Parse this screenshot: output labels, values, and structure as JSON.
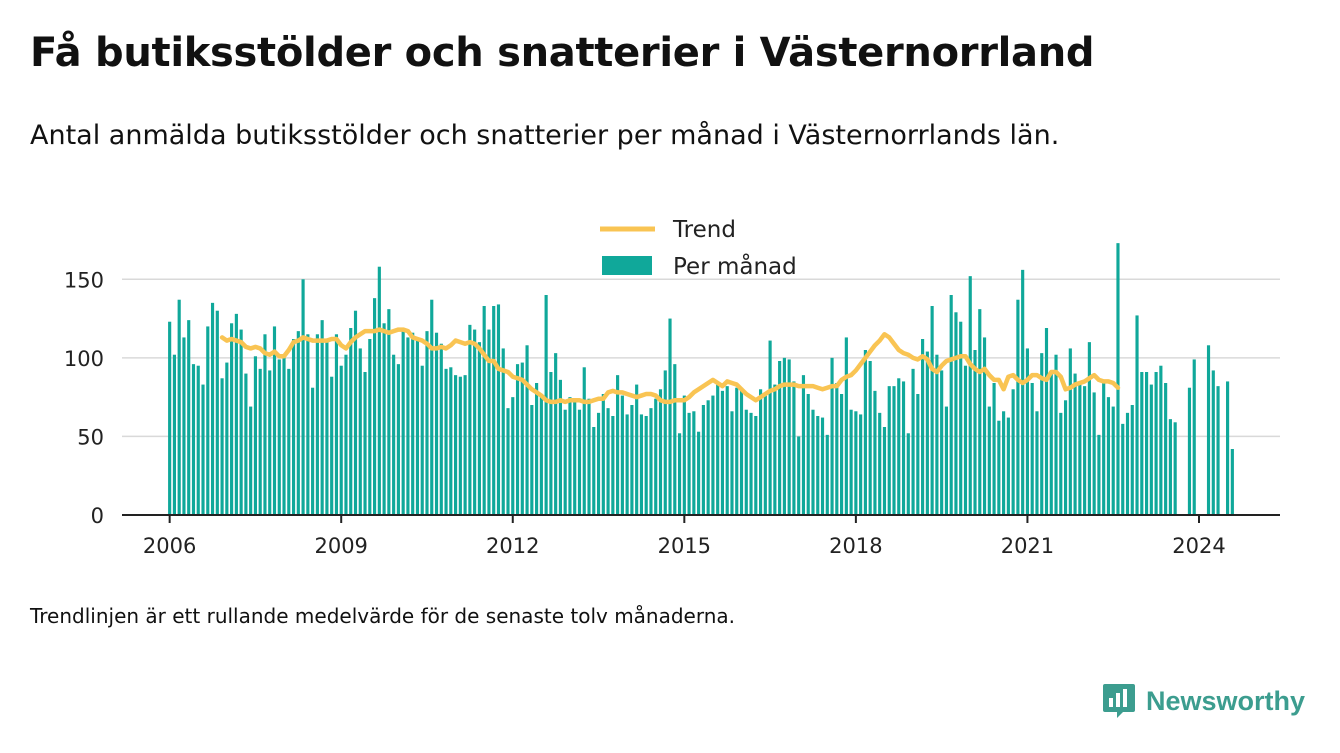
{
  "title": "Få butiksstölder och snatterier i Västernorrland",
  "subtitle": "Antal anmälda butiksstölder och snatterier per månad i Västernorrlands län.",
  "footnote": "Trendlinjen är ett rullande medelvärde för de senaste tolv månaderna.",
  "brand": {
    "name": "Newsworthy",
    "icon": "newsworthy-logo-icon",
    "color": "#3c9d8f"
  },
  "colors": {
    "bars": "#10a89a",
    "trend": "#f9c453",
    "grid": "#d9d9d9",
    "axis": "#222222"
  },
  "chart_data": {
    "type": "bar",
    "title": "",
    "xlabel": "",
    "ylabel": "",
    "ylim": [
      0,
      175
    ],
    "yticks": [
      0,
      50,
      100,
      150
    ],
    "x_start": "2006-01",
    "xlim": [
      "2005-03",
      "2025-06"
    ],
    "xticks": [
      "2006",
      "2009",
      "2012",
      "2015",
      "2018",
      "2021",
      "2024"
    ],
    "grid": true,
    "legend": {
      "position": "top-center",
      "entries": [
        "Trend",
        "Per månad"
      ]
    },
    "series": [
      {
        "name": "Per månad",
        "type": "bar",
        "values": [
          123,
          102,
          137,
          113,
          124,
          96,
          95,
          83,
          120,
          135,
          130,
          87,
          97,
          122,
          128,
          118,
          90,
          69,
          101,
          93,
          115,
          92,
          120,
          99,
          102,
          93,
          112,
          117,
          150,
          115,
          81,
          115,
          124,
          110,
          88,
          115,
          95,
          102,
          119,
          130,
          106,
          91,
          112,
          138,
          158,
          122,
          131,
          102,
          96,
          117,
          113,
          116,
          111,
          95,
          117,
          137,
          116,
          109,
          93,
          94,
          89,
          88,
          89,
          121,
          118,
          110,
          133,
          118,
          133,
          134,
          106,
          68,
          75,
          96,
          97,
          108,
          70,
          84,
          76,
          140,
          91,
          103,
          86,
          67,
          75,
          72,
          67,
          94,
          74,
          56,
          65,
          77,
          68,
          63,
          89,
          76,
          64,
          70,
          83,
          64,
          63,
          68,
          74,
          80,
          92,
          125,
          96,
          52,
          76,
          65,
          66,
          53,
          70,
          73,
          76,
          85,
          79,
          82,
          66,
          81,
          81,
          67,
          65,
          63,
          80,
          76,
          111,
          83,
          98,
          100,
          99,
          85,
          50,
          89,
          77,
          67,
          63,
          62,
          51,
          100,
          84,
          77,
          113,
          67,
          66,
          64,
          105,
          98,
          79,
          65,
          56,
          82,
          82,
          87,
          85,
          52,
          93,
          77,
          112,
          104,
          133,
          102,
          92,
          69,
          140,
          129,
          123,
          95,
          152,
          105,
          131,
          113,
          69,
          84,
          60,
          66,
          62,
          80,
          137,
          156,
          106,
          84,
          66,
          103,
          119,
          91,
          102,
          65,
          73,
          106,
          90,
          85,
          82,
          110,
          78,
          51,
          84,
          75,
          69,
          173,
          58,
          65,
          70,
          127,
          91,
          91,
          83,
          91,
          95,
          84,
          61,
          59,
          null,
          null,
          81,
          99,
          null,
          null,
          108,
          92,
          82,
          null,
          85,
          42
        ]
      },
      {
        "name": "Trend",
        "type": "line",
        "start": "2006-12",
        "values": [
          113,
          111,
          112,
          111,
          110,
          107,
          106,
          107,
          106,
          103,
          102,
          104,
          101,
          101,
          105,
          110,
          111,
          113,
          112,
          111,
          111,
          111,
          111,
          112,
          112,
          108,
          106,
          110,
          113,
          115,
          117,
          117,
          117,
          118,
          117,
          116,
          117,
          118,
          118,
          117,
          113,
          112,
          111,
          109,
          106,
          106,
          107,
          106,
          108,
          111,
          110,
          109,
          110,
          109,
          106,
          102,
          98,
          98,
          93,
          92,
          91,
          88,
          87,
          86,
          83,
          80,
          78,
          76,
          73,
          72,
          72,
          73,
          72,
          73,
          73,
          73,
          72,
          72,
          73,
          74,
          74,
          78,
          79,
          78,
          78,
          77,
          76,
          75,
          76,
          77,
          77,
          76,
          73,
          72,
          72,
          73,
          73,
          73,
          75,
          78,
          80,
          82,
          84,
          86,
          84,
          82,
          85,
          84,
          83,
          80,
          77,
          75,
          73,
          75,
          77,
          79,
          80,
          82,
          83,
          83,
          83,
          82,
          82,
          82,
          82,
          81,
          80,
          81,
          82,
          82,
          86,
          88,
          89,
          92,
          96,
          100,
          104,
          108,
          111,
          115,
          113,
          109,
          105,
          103,
          102,
          100,
          99,
          101,
          99,
          93,
          91,
          95,
          98,
          99,
          100,
          101,
          101,
          96,
          93,
          91,
          93,
          89,
          86,
          86,
          80,
          88,
          89,
          86,
          84,
          86,
          89,
          89,
          87,
          86,
          91,
          91,
          88,
          80,
          81,
          83,
          84,
          85,
          87,
          89,
          86,
          85,
          85,
          84,
          81
        ]
      }
    ]
  }
}
